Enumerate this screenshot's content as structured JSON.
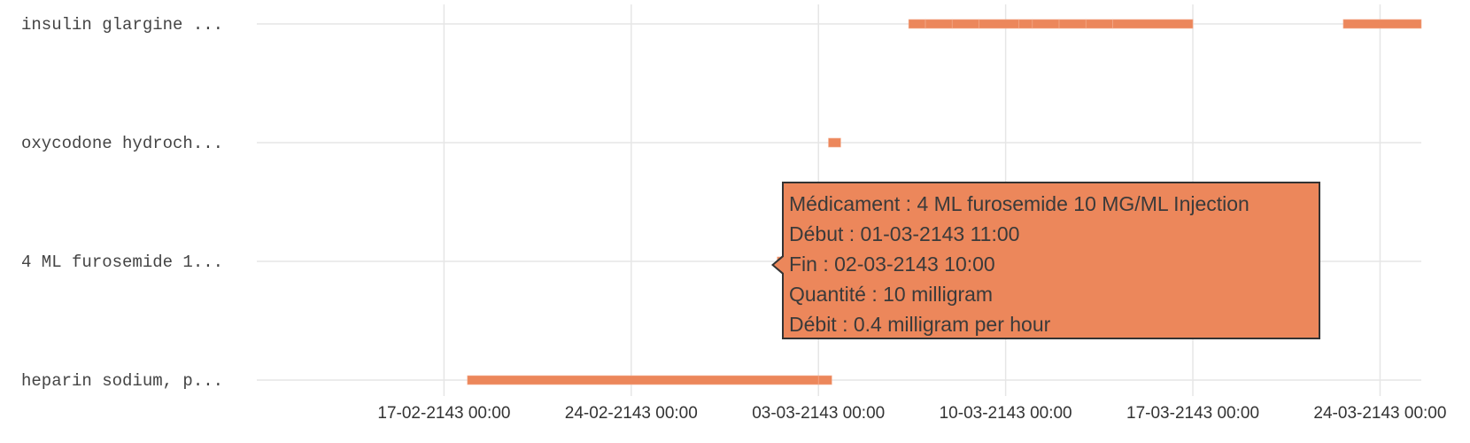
{
  "chart_data": {
    "type": "timeline",
    "bar_color": "#ec875b",
    "grid": true,
    "categories": [
      "insulin glargine ...",
      "oxycodone hydroch...",
      "4 ML furosemide 1...",
      "heparin sodium, p..."
    ],
    "x_ticks": [
      "17-02-2143 00:00",
      "24-02-2143 00:00",
      "03-03-2143 00:00",
      "10-03-2143 00:00",
      "17-03-2143 00:00",
      "24-03-2143 00:00"
    ],
    "x_range": [
      "2143-02-10 00:00",
      "2143-03-25 13:00"
    ],
    "segments": [
      {
        "category": "insulin glargine ...",
        "start": "2143-03-06 09:00",
        "end": "2143-03-07 00:00"
      },
      {
        "category": "insulin glargine ...",
        "start": "2143-03-07 00:00",
        "end": "2143-03-08 00:00"
      },
      {
        "category": "insulin glargine ...",
        "start": "2143-03-08 00:00",
        "end": "2143-03-09 00:00"
      },
      {
        "category": "insulin glargine ...",
        "start": "2143-03-09 00:00",
        "end": "2143-03-10 12:00"
      },
      {
        "category": "insulin glargine ...",
        "start": "2143-03-10 12:00",
        "end": "2143-03-11 00:00"
      },
      {
        "category": "insulin glargine ...",
        "start": "2143-03-11 00:00",
        "end": "2143-03-12 00:00"
      },
      {
        "category": "insulin glargine ...",
        "start": "2143-03-12 00:00",
        "end": "2143-03-13 00:00"
      },
      {
        "category": "insulin glargine ...",
        "start": "2143-03-13 00:00",
        "end": "2143-03-14 00:00"
      },
      {
        "category": "insulin glargine ...",
        "start": "2143-03-14 00:00",
        "end": "2143-03-17 00:00"
      },
      {
        "category": "insulin glargine ...",
        "start": "2143-03-22 15:00",
        "end": "2143-03-25 13:00"
      },
      {
        "category": "oxycodone hydroch...",
        "start": "2143-03-03 09:00",
        "end": "2143-03-03 20:00"
      },
      {
        "category": "4 ML furosemide 1...",
        "start": "2143-03-01 11:00",
        "end": "2143-03-02 10:00"
      },
      {
        "category": "heparin sodium, p...",
        "start": "2143-02-17 21:00",
        "end": "2143-03-03 00:00"
      },
      {
        "category": "heparin sodium, p...",
        "start": "2143-03-03 00:00",
        "end": "2143-03-03 12:00"
      }
    ]
  },
  "tooltip": {
    "lines": [
      "Médicament : 4 ML furosemide 10 MG/ML Injection",
      "Début : 01-03-2143 11:00",
      "Fin : 02-03-2143 10:00",
      "Quantité : 10 milligram",
      "Débit : 0.4 milligram per hour"
    ]
  }
}
